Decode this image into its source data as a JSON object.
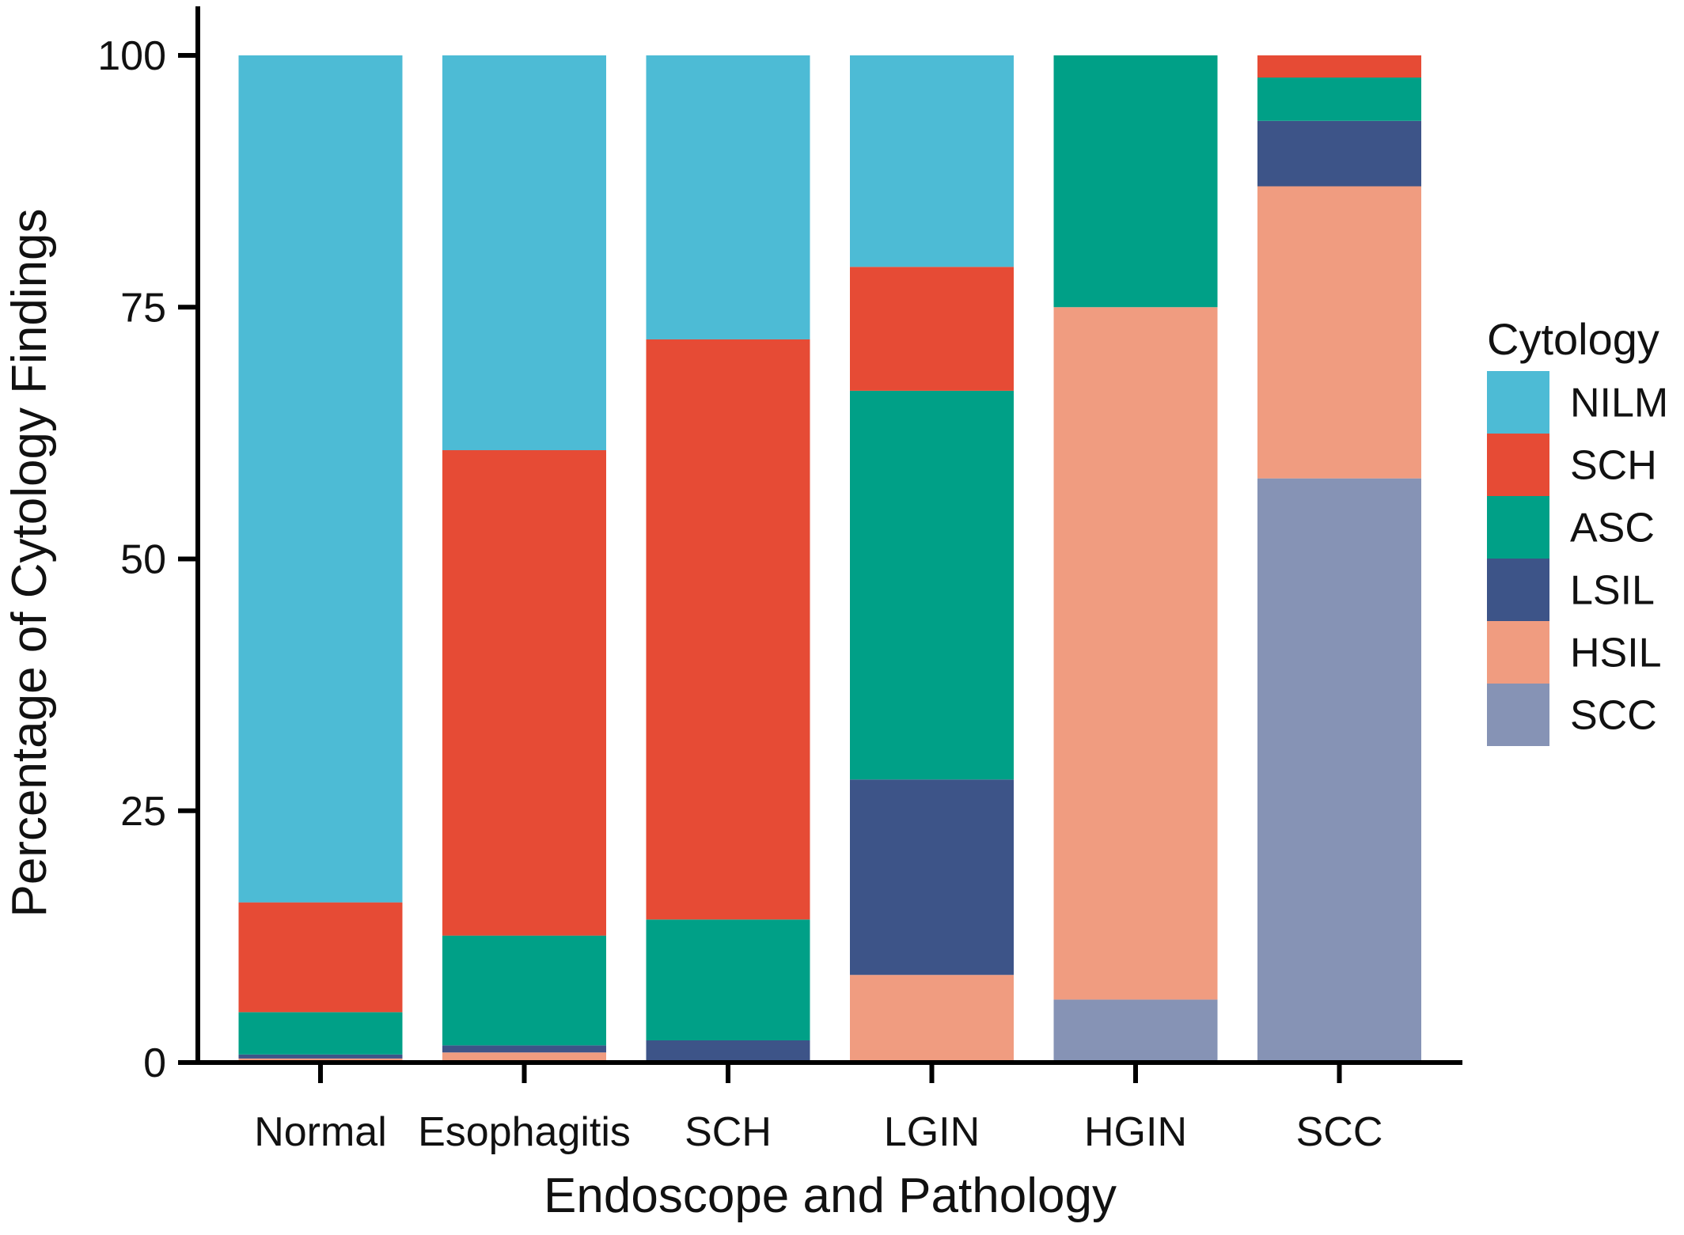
{
  "chart_data": {
    "type": "bar",
    "stacked": true,
    "xlabel": "Endoscope and Pathology",
    "ylabel": "Percentage of Cytology Findings",
    "ylim": [
      0,
      100
    ],
    "yticks": [
      0,
      25,
      50,
      75,
      100
    ],
    "grid": false,
    "legend": {
      "title": "Cytology",
      "placement": "right"
    },
    "categories": [
      "Normal",
      "Esophagitis",
      "SCH",
      "LGIN",
      "HGIN",
      "SCC"
    ],
    "series": [
      {
        "name": "SCC",
        "color": "#8693B5",
        "values": [
          0.0,
          0.0,
          0.0,
          0.0,
          6.25,
          58.0
        ]
      },
      {
        "name": "HSIL",
        "color": "#F09C80",
        "values": [
          0.4,
          1.0,
          0.0,
          8.7,
          68.75,
          29.0
        ]
      },
      {
        "name": "LSIL",
        "color": "#3D5488",
        "values": [
          0.4,
          0.7,
          2.2,
          19.4,
          0.0,
          6.5
        ]
      },
      {
        "name": "ASC",
        "color": "#00A087",
        "values": [
          4.2,
          10.9,
          12.0,
          38.6,
          25.0,
          4.3
        ]
      },
      {
        "name": "SCH",
        "color": "#E64B35",
        "values": [
          10.9,
          48.2,
          57.6,
          12.3,
          0.0,
          2.2
        ]
      },
      {
        "name": "NILM",
        "color": "#4DBBD5",
        "values": [
          84.1,
          39.2,
          28.2,
          21.0,
          0.0,
          0.0
        ]
      }
    ],
    "legend_order": [
      "NILM",
      "SCH",
      "ASC",
      "LSIL",
      "HSIL",
      "SCC"
    ]
  }
}
